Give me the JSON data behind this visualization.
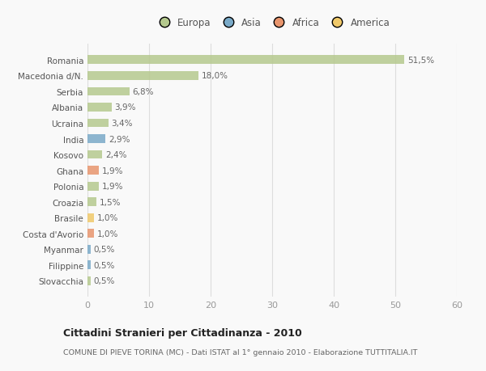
{
  "categories": [
    "Romania",
    "Macedonia d/N.",
    "Serbia",
    "Albania",
    "Ucraina",
    "India",
    "Kosovo",
    "Ghana",
    "Polonia",
    "Croazia",
    "Brasile",
    "Costa d'Avorio",
    "Myanmar",
    "Filippine",
    "Slovacchia"
  ],
  "values": [
    51.5,
    18.0,
    6.8,
    3.9,
    3.4,
    2.9,
    2.4,
    1.9,
    1.9,
    1.5,
    1.0,
    1.0,
    0.5,
    0.5,
    0.5
  ],
  "labels": [
    "51,5%",
    "18,0%",
    "6,8%",
    "3,9%",
    "3,4%",
    "2,9%",
    "2,4%",
    "1,9%",
    "1,9%",
    "1,5%",
    "1,0%",
    "1,0%",
    "0,5%",
    "0,5%",
    "0,5%"
  ],
  "continents": [
    "Europa",
    "Europa",
    "Europa",
    "Europa",
    "Europa",
    "Asia",
    "Europa",
    "Africa",
    "Europa",
    "Europa",
    "America",
    "Africa",
    "Asia",
    "Asia",
    "Europa"
  ],
  "colors": {
    "Europa": "#b5c98e",
    "Asia": "#7aaac8",
    "Africa": "#e8956d",
    "America": "#f0c96a"
  },
  "legend_order": [
    "Europa",
    "Asia",
    "Africa",
    "America"
  ],
  "legend_colors": [
    "#b5c98e",
    "#7aaac8",
    "#e8956d",
    "#f0c96a"
  ],
  "xlim": [
    0,
    60
  ],
  "xticks": [
    0,
    10,
    20,
    30,
    40,
    50,
    60
  ],
  "title": "Cittadini Stranieri per Cittadinanza - 2010",
  "subtitle": "COMUNE DI PIEVE TORINA (MC) - Dati ISTAT al 1° gennaio 2010 - Elaborazione TUTTITALIA.IT",
  "bg_color": "#f9f9f9",
  "grid_color": "#dddddd",
  "bar_height": 0.55,
  "label_fontsize": 7.5,
  "ytick_fontsize": 7.5,
  "xtick_fontsize": 8.0
}
